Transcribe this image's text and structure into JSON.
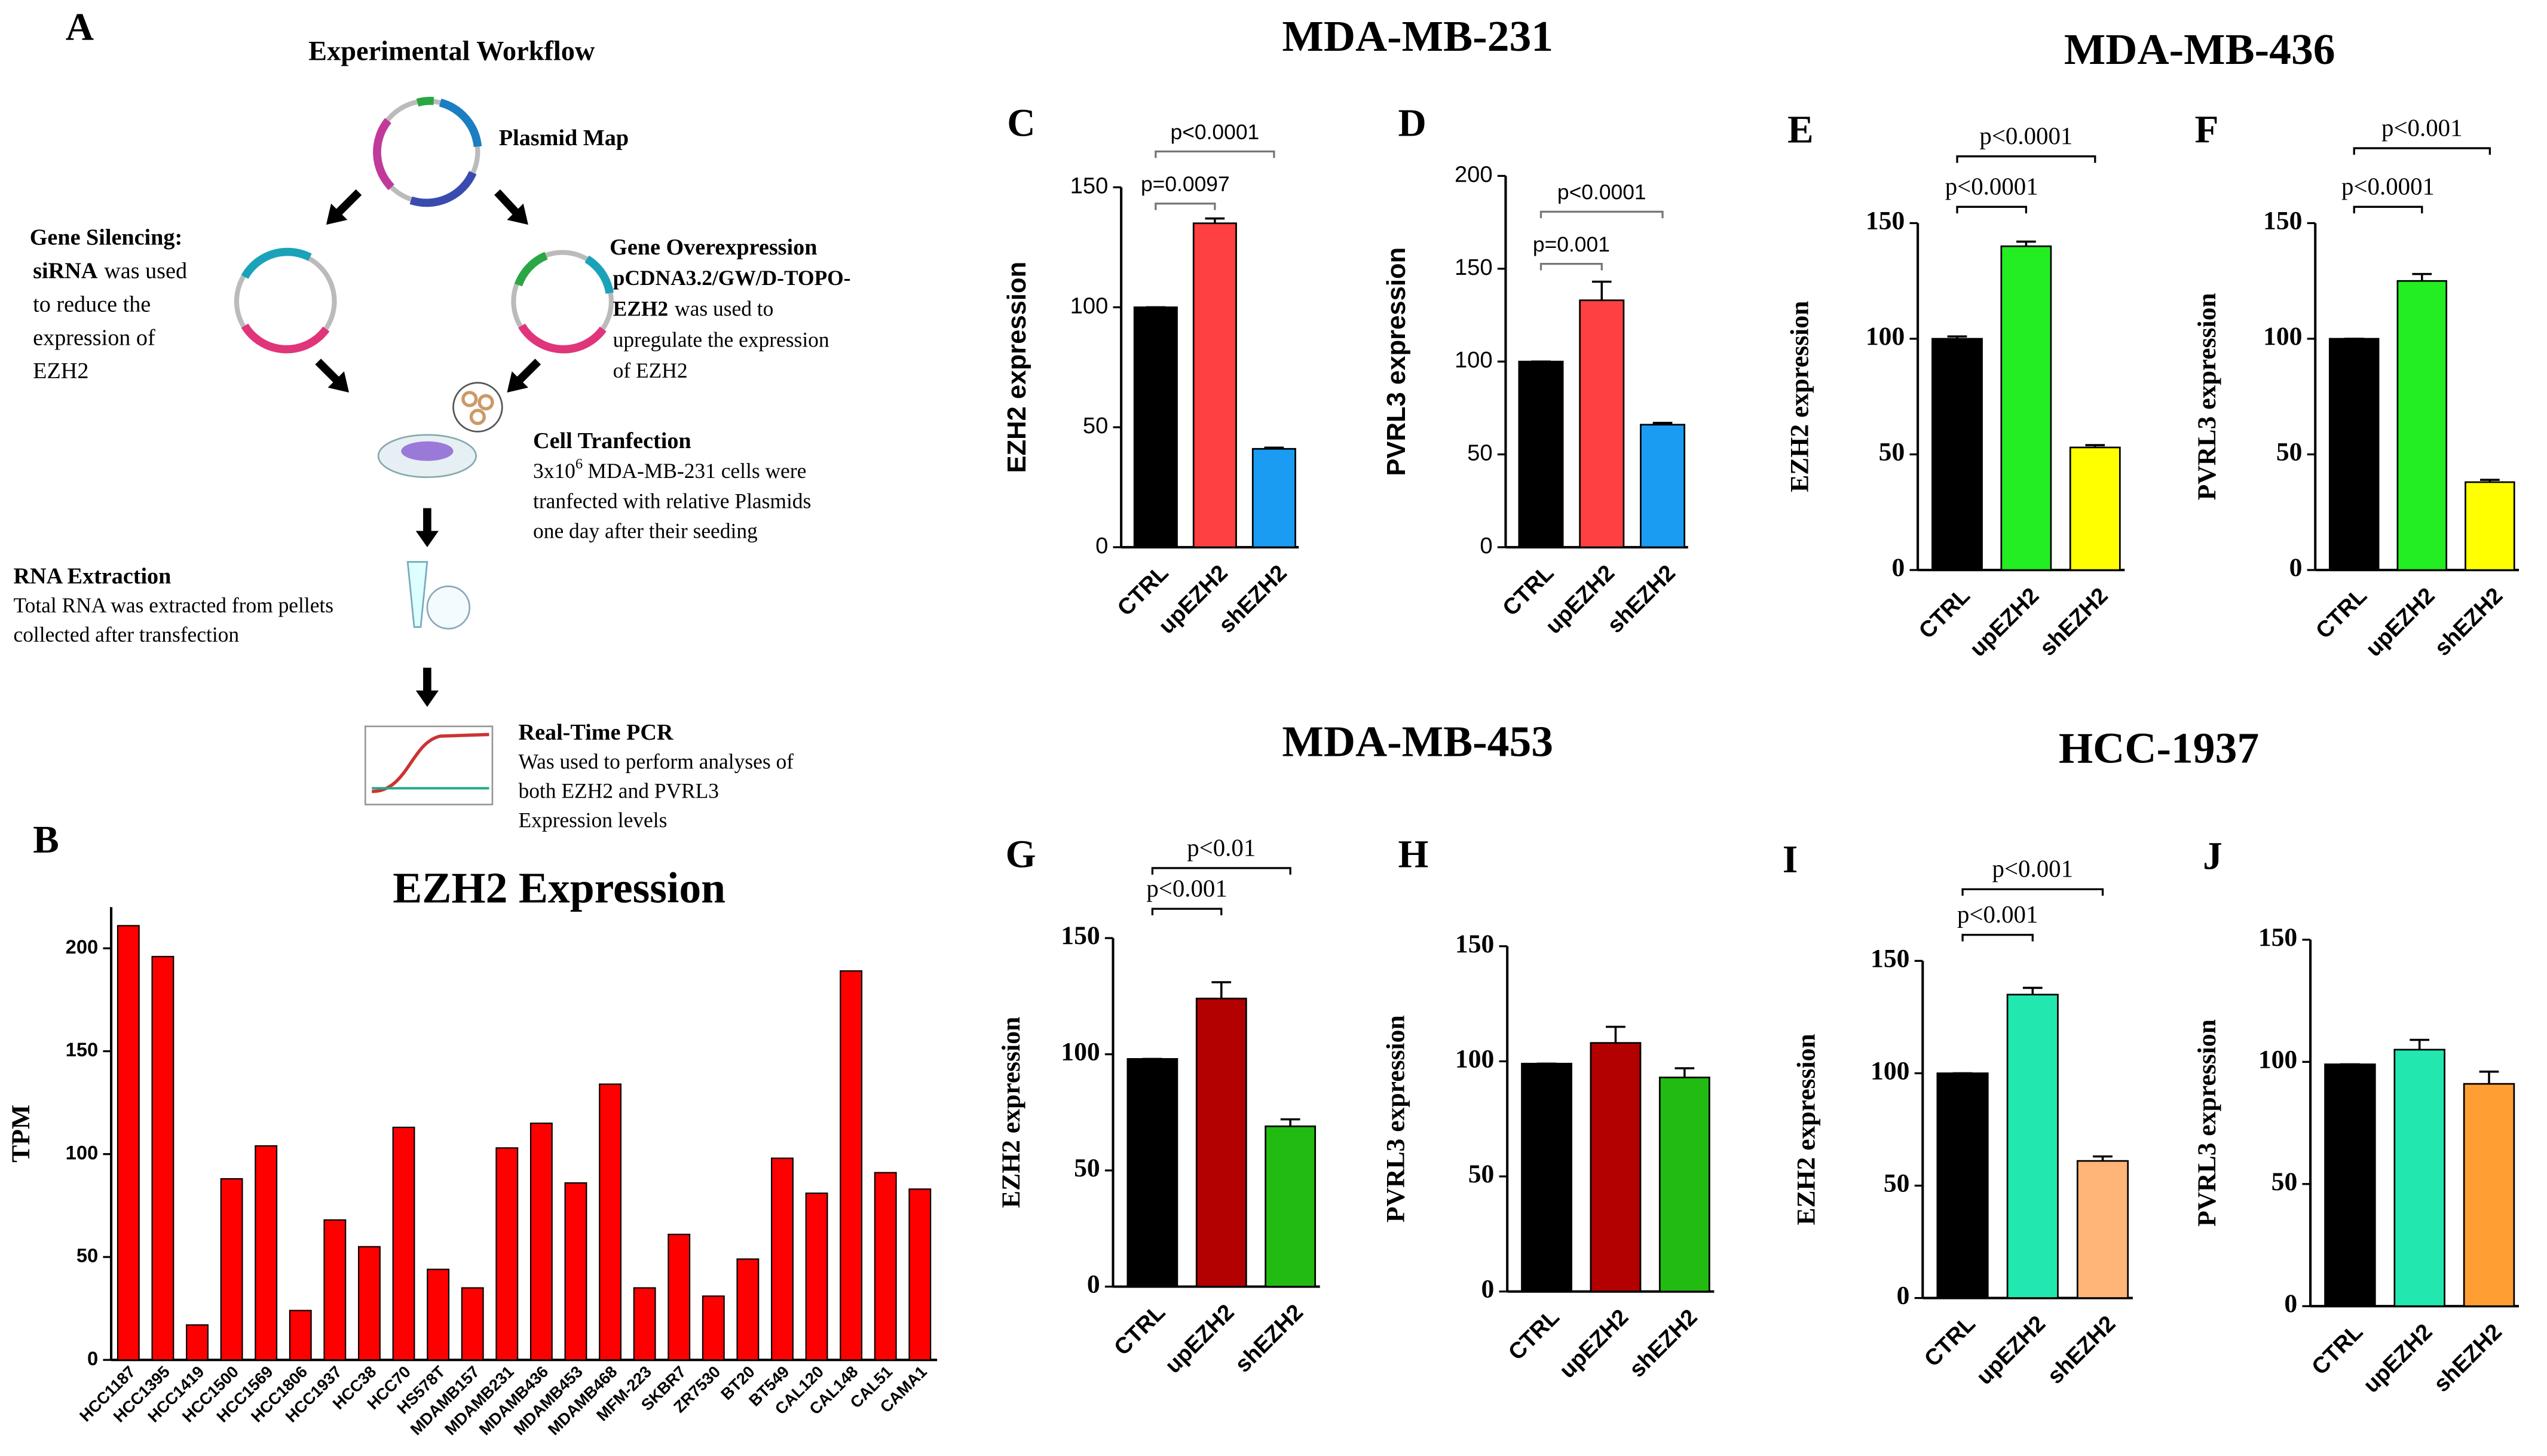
{
  "group_titles": [
    "MDA-MB-231",
    "MDA-MB-436",
    "MDA-MB-453",
    "HCC-1937"
  ],
  "workflow": {
    "panel": "A",
    "title": "Experimental Workflow",
    "steps": [
      {
        "heading": "Plasmid Map",
        "lines": []
      },
      {
        "heading": "Gene Silencing:",
        "lines": [
          [
            {
              "text": "siRNA",
              "bold": true
            },
            {
              "text": "was used"
            }
          ],
          [
            {
              "text": "to reduce the"
            }
          ],
          [
            {
              "text": "expression of"
            }
          ],
          [
            {
              "text": "EZH2"
            }
          ]
        ]
      },
      {
        "heading": "Gene Overexpression",
        "lines": [
          [
            {
              "text": "pCDNA3.2/GW/D-TOPO-",
              "bold": true
            }
          ],
          [
            {
              "text": "EZH2",
              "bold": true
            },
            {
              "text": "was used to"
            }
          ],
          [
            {
              "text": "upregulate the expression"
            }
          ],
          [
            {
              "text": "of EZH2"
            }
          ]
        ]
      },
      {
        "heading": "Cell Tranfection",
        "lines": [
          [
            {
              "text": "3x10"
            },
            {
              "text": "6",
              "sup": true
            },
            {
              "text": "MDA-MB-231 cells were"
            }
          ],
          [
            {
              "text": "tranfected with relative Plasmids"
            }
          ],
          [
            {
              "text": "one day after their seeding"
            }
          ]
        ]
      },
      {
        "heading": "RNA Extraction",
        "lines": [
          [
            {
              "text": "Total RNA was extracted from pellets"
            }
          ],
          [
            {
              "text": "collected after transfection"
            }
          ]
        ]
      },
      {
        "heading": "Real-Time PCR",
        "lines": [
          [
            {
              "text": "Was used to perform analyses of"
            }
          ],
          [
            {
              "text": "both EZH2 and PVRL3"
            }
          ],
          [
            {
              "text": "Expression levels"
            }
          ]
        ]
      }
    ]
  },
  "chart_data": [
    {
      "type": "bar",
      "panel": "B",
      "title": "EZH2 Expression",
      "y_label": "TPM",
      "categories": [
        "HCC1187",
        "HCC1395",
        "HCC1419",
        "HCC1500",
        "HCC1569",
        "HCC1806",
        "HCC1937",
        "HCC38",
        "HCC70",
        "HS578T",
        "MDAMB157",
        "MDAMB231",
        "MDAMB436",
        "MDAMB453",
        "MDAMB468",
        "MFM-223",
        "SKBR7",
        "ZR7530",
        "BT20",
        "BT549",
        "CAL120",
        "CAL148",
        "CAL51",
        "CAMA1"
      ],
      "values": [
        211,
        196,
        17,
        88,
        104,
        24,
        68,
        55,
        113,
        44,
        35,
        103,
        115,
        86,
        134,
        35,
        61,
        31,
        49,
        98,
        81,
        189,
        91,
        83
      ],
      "color": "#ff0000",
      "ylim": [
        0,
        220
      ],
      "yticks": [
        0,
        50,
        100,
        150,
        200
      ]
    },
    {
      "type": "bar",
      "panel": "C",
      "y_label": "EZH2 expression",
      "categories": [
        "CTRL",
        "upEZH2",
        "shEZH2"
      ],
      "values": [
        100,
        135,
        41
      ],
      "errors": [
        0,
        2,
        0.5
      ],
      "colors": [
        "#000000",
        "#ff4040",
        "#1a9cf2"
      ],
      "ylim": [
        0,
        150
      ],
      "yticks": [
        0,
        50,
        100,
        150
      ],
      "annotations": [
        {
          "text": "p=0.0097",
          "between": [
            "CTRL",
            "upEZH2"
          ]
        },
        {
          "text": "p<0.0001",
          "between": [
            "CTRL",
            "shEZH2"
          ]
        }
      ]
    },
    {
      "type": "bar",
      "panel": "D",
      "y_label": "PVRL3 expression",
      "categories": [
        "CTRL",
        "upEZH2",
        "shEZH2"
      ],
      "values": [
        100,
        133,
        66
      ],
      "errors": [
        0,
        10,
        1
      ],
      "colors": [
        "#000000",
        "#ff4040",
        "#1a9cf2"
      ],
      "ylim": [
        0,
        200
      ],
      "yticks": [
        0,
        50,
        100,
        150,
        200
      ],
      "annotations": [
        {
          "text": "p=0.001",
          "between": [
            "CTRL",
            "upEZH2"
          ]
        },
        {
          "text": "p<0.0001",
          "between": [
            "CTRL",
            "shEZH2"
          ]
        }
      ]
    },
    {
      "type": "bar",
      "panel": "E",
      "y_label": "EZH2 expression",
      "categories": [
        "CTRL",
        "upEZH2",
        "shEZH2"
      ],
      "values": [
        100,
        140,
        53
      ],
      "errors": [
        1,
        2,
        1
      ],
      "colors": [
        "#000000",
        "#22ee22",
        "#ffff00"
      ],
      "ylim": [
        0,
        150
      ],
      "yticks": [
        0,
        50,
        100,
        150
      ],
      "annotations": [
        {
          "text": "p<0.0001",
          "between": [
            "CTRL",
            "upEZH2"
          ]
        },
        {
          "text": "p<0.0001",
          "between": [
            "CTRL",
            "shEZH2"
          ]
        }
      ]
    },
    {
      "type": "bar",
      "panel": "F",
      "y_label": "PVRL3 expression",
      "categories": [
        "CTRL",
        "upEZH2",
        "shEZH2"
      ],
      "values": [
        100,
        125,
        38
      ],
      "errors": [
        0,
        3,
        1
      ],
      "colors": [
        "#000000",
        "#22ee22",
        "#ffff00"
      ],
      "ylim": [
        0,
        150
      ],
      "yticks": [
        0,
        50,
        100,
        150
      ],
      "annotations": [
        {
          "text": "p<0.0001",
          "between": [
            "CTRL",
            "upEZH2"
          ]
        },
        {
          "text": "p<0.001",
          "between": [
            "CTRL",
            "shEZH2"
          ]
        }
      ]
    },
    {
      "type": "bar",
      "panel": "G",
      "y_label": "EZH2 expression",
      "categories": [
        "CTRL",
        "upEZH2",
        "shEZH2"
      ],
      "values": [
        98,
        124,
        69
      ],
      "errors": [
        0,
        7,
        3
      ],
      "colors": [
        "#000000",
        "#b30000",
        "#22bb11"
      ],
      "ylim": [
        0,
        150
      ],
      "yticks": [
        0,
        50,
        100,
        150
      ],
      "annotations": [
        {
          "text": "p<0.001",
          "between": [
            "CTRL",
            "upEZH2"
          ]
        },
        {
          "text": "p<0.01",
          "between": [
            "CTRL",
            "shEZH2"
          ]
        }
      ]
    },
    {
      "type": "bar",
      "panel": "H",
      "y_label": "PVRL3 expression",
      "categories": [
        "CTRL",
        "upEZH2",
        "shEZH2"
      ],
      "values": [
        99,
        108,
        93
      ],
      "errors": [
        0,
        7,
        4
      ],
      "colors": [
        "#000000",
        "#b30000",
        "#22bb11"
      ],
      "ylim": [
        0,
        150
      ],
      "yticks": [
        0,
        50,
        100,
        150
      ]
    },
    {
      "type": "bar",
      "panel": "I",
      "y_label": "EZH2 expression",
      "categories": [
        "CTRL",
        "upEZH2",
        "shEZH2"
      ],
      "values": [
        100,
        135,
        61
      ],
      "errors": [
        0,
        3,
        2
      ],
      "colors": [
        "#000000",
        "#22e8b0",
        "#ffb577"
      ],
      "ylim": [
        0,
        150
      ],
      "yticks": [
        0,
        50,
        100,
        150
      ],
      "annotations": [
        {
          "text": "p<0.001",
          "between": [
            "CTRL",
            "upEZH2"
          ]
        },
        {
          "text": "p<0.001",
          "between": [
            "CTRL",
            "shEZH2"
          ]
        }
      ]
    },
    {
      "type": "bar",
      "panel": "J",
      "y_label": "PVRL3 expression",
      "categories": [
        "CTRL",
        "upEZH2",
        "shEZH2"
      ],
      "values": [
        99,
        105,
        91
      ],
      "errors": [
        0,
        4,
        5
      ],
      "colors": [
        "#000000",
        "#22e8b0",
        "#ff9f33"
      ],
      "ylim": [
        0,
        150
      ],
      "yticks": [
        0,
        50,
        100,
        150
      ]
    }
  ]
}
